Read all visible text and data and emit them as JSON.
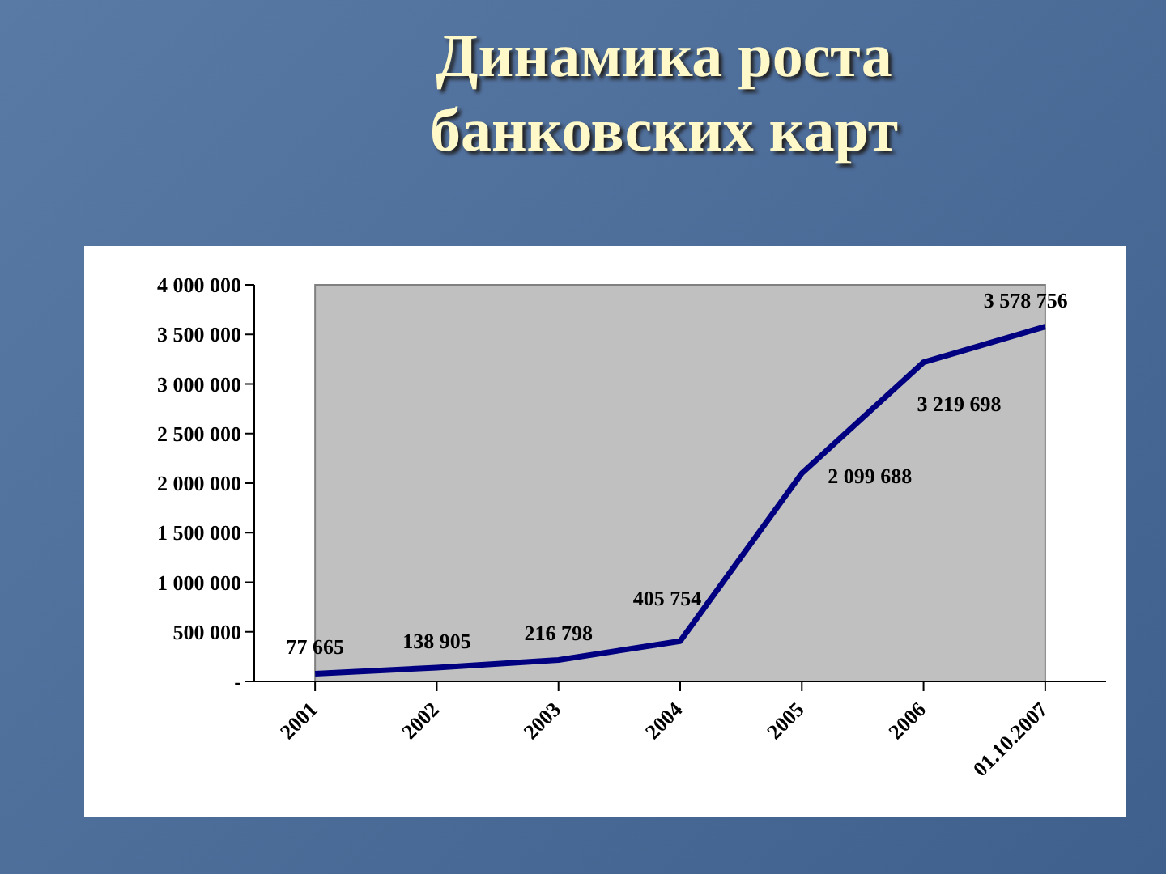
{
  "chart_data": {
    "type": "line",
    "title": "Динамика роста банковских карт",
    "categories": [
      "2001",
      "2002",
      "2003",
      "2004",
      "2005",
      "2006",
      "01.10.2007"
    ],
    "series": [
      {
        "color": "#000080",
        "values": [
          77665,
          138905,
          216798,
          405754,
          2099688,
          3219698,
          3578756
        ],
        "value_labels": [
          "77 665",
          "138 905",
          "216 798",
          "405 754",
          "2 099 688",
          "3 219 698",
          "3 578 756"
        ]
      }
    ],
    "ylim": [
      0,
      4000000
    ],
    "yticks": [
      {
        "value": 0,
        "label": "-"
      },
      {
        "value": 500000,
        "label": "500 000"
      },
      {
        "value": 1000000,
        "label": "1 000 000"
      },
      {
        "value": 1500000,
        "label": "1 500 000"
      },
      {
        "value": 2000000,
        "label": "2 000 000"
      },
      {
        "value": 2500000,
        "label": "2 500 000"
      },
      {
        "value": 3000000,
        "label": "3 000 000"
      },
      {
        "value": 3500000,
        "label": "3 500 000"
      },
      {
        "value": 4000000,
        "label": "4 000 000"
      }
    ],
    "grid": false,
    "legend": false,
    "marker": "none",
    "line_style": "solid"
  }
}
